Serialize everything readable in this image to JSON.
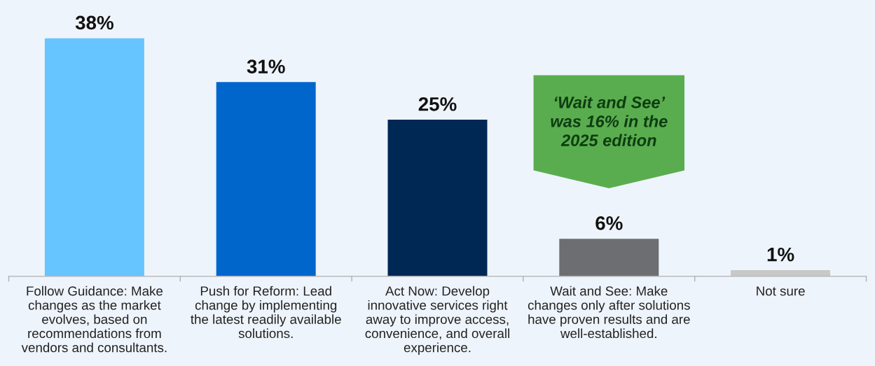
{
  "chart_data": {
    "type": "bar",
    "categories": [
      "Follow Guidance: Make\nchanges as the market\nevolves, based on\nrecommendations from\nvendors and consultants.",
      "Push for Reform: Lead\nchange by implementing\nthe latest readily available\nsolutions.",
      "Act Now: Develop\ninnovative services right\naway to improve access,\nconvenience, and overall\nexperience.",
      "Wait and See: Make\nchanges only after solutions\nhave proven results and are\nwell-established.",
      "Not sure"
    ],
    "values": [
      38,
      31,
      25,
      6,
      1
    ],
    "colors": [
      "#66c4ff",
      "#0066cc",
      "#002855",
      "#6d6e71",
      "#c8c8c8"
    ],
    "value_labels": [
      "38%",
      "31%",
      "25%",
      "6%",
      "1%"
    ],
    "grid": false,
    "legend": false,
    "annotations": [
      "‘Wait and See’\nwas 16% in the\n2025 edition"
    ]
  }
}
